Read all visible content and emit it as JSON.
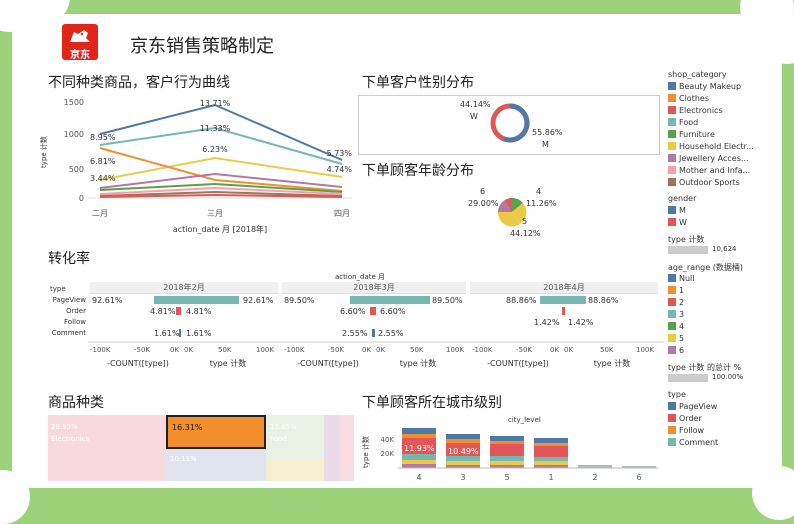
{
  "header": {
    "title": "京东销售策略制定",
    "logo_text": "京东"
  },
  "line_chart": {
    "title": "不同种类商品，客户行为曲线",
    "ylabel": "type 计数",
    "xlabel": "action_date 月 [2018年]",
    "yticks": [
      "1500",
      "1000",
      "500",
      "0"
    ],
    "xticks": [
      "二月",
      "三月",
      "四月"
    ],
    "labels": [
      "8.95%",
      "6.81%",
      "3.44%",
      "13.71%",
      "11.33%",
      "6.23%",
      "5.73%",
      "4.74%"
    ]
  },
  "gender": {
    "title": "下单客户性别分布",
    "w_pct": "44.14%",
    "w": "W",
    "m_pct": "55.86%",
    "m": "M"
  },
  "age": {
    "title": "下单顾客年龄分布",
    "l6": "6",
    "l6_pct": "29.00%",
    "l4": "4",
    "l4_pct": "11.26%",
    "l5": "5",
    "l5_pct": "44.12%"
  },
  "conversion": {
    "title": "转化率",
    "header": "action_date 月",
    "row_header": "type",
    "rows": [
      "PageView",
      "Order",
      "Follow",
      "Comment"
    ],
    "panels": [
      {
        "label": "2018年2月",
        "left": [
          "92.61%",
          "4.81%",
          "",
          "1.61%"
        ],
        "right": [
          "92.61%",
          "4.81%",
          "",
          "1.61%"
        ]
      },
      {
        "label": "2018年3月",
        "left": [
          "89.50%",
          "6.60%",
          "",
          "2.55%"
        ],
        "right": [
          "89.50%",
          "6.60%",
          "",
          "2.55%"
        ]
      },
      {
        "label": "2018年4月",
        "left": [
          "88.86%",
          "",
          "1.42%",
          ""
        ],
        "right": [
          "88.86%",
          "",
          "1.42%",
          ""
        ]
      }
    ],
    "axis_ticks": [
      "-100K",
      "-50K",
      "0K",
      "0K",
      "50K",
      "100K"
    ],
    "left_axis_label": "-COUNT([type])",
    "right_axis_label": "type 计数"
  },
  "treemap": {
    "title": "商品种类",
    "cells": [
      {
        "pct": "29.55%",
        "name": "Electronics"
      },
      {
        "pct": "16.31%",
        "name": ""
      },
      {
        "pct": "13.65%",
        "name": "Food"
      },
      {
        "pct": "10.11%",
        "name": ""
      }
    ]
  },
  "city": {
    "title": "下单顾客所在城市级别",
    "header": "city_level",
    "ylabel": "type 计数",
    "yticks": [
      "40K",
      "20K"
    ],
    "categories": [
      "4",
      "3",
      "5",
      "1",
      "2",
      "6"
    ],
    "labels": [
      "11.93%",
      "10.49%"
    ]
  },
  "legend": {
    "shop_title": "shop_category",
    "shop": [
      {
        "name": "Beauty Makeup",
        "color": "#4e79a7"
      },
      {
        "name": "Clothes",
        "color": "#f28e2b"
      },
      {
        "name": "Electronics",
        "color": "#e15759"
      },
      {
        "name": "Food",
        "color": "#76b7b2"
      },
      {
        "name": "Furniture",
        "color": "#59a14f"
      },
      {
        "name": "Household Electr...",
        "color": "#edc948"
      },
      {
        "name": "Jewellery Acces...",
        "color": "#b07aa1"
      },
      {
        "name": "Mother and Infa...",
        "color": "#ff9da7"
      },
      {
        "name": "Outdoor Sports",
        "color": "#9c755f"
      }
    ],
    "gender_title": "gender",
    "gender": [
      {
        "name": "M",
        "color": "#4e79a7"
      },
      {
        "name": "W",
        "color": "#e15759"
      }
    ],
    "count_title": "type 计数",
    "count_value": "10,624",
    "age_title": "age_range (数据桶)",
    "age": [
      {
        "name": "Null",
        "color": "#4e79a7"
      },
      {
        "name": "1",
        "color": "#f28e2b"
      },
      {
        "name": "2",
        "color": "#e15759"
      },
      {
        "name": "3",
        "color": "#76b7b2"
      },
      {
        "name": "4",
        "color": "#59a14f"
      },
      {
        "name": "5",
        "color": "#edc948"
      },
      {
        "name": "6",
        "color": "#b07aa1"
      }
    ],
    "pct_title": "type 计数 的总计 %",
    "pct_value": "100.00%",
    "type_title": "type",
    "type": [
      {
        "name": "PageView",
        "color": "#4e79a7"
      },
      {
        "name": "Order",
        "color": "#e15759"
      },
      {
        "name": "Follow",
        "color": "#f28e2b"
      },
      {
        "name": "Comment",
        "color": "#76b7b2"
      }
    ]
  }
}
